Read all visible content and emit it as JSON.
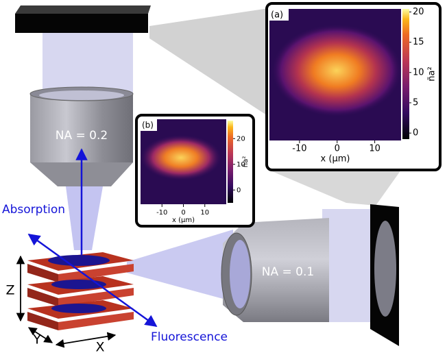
{
  "labels": {
    "objective_top": "NA = 0.2",
    "objective_right": "NA = 0.1",
    "absorption": "Absorption",
    "fluorescence": "Fluorescence",
    "axis_z": "Z",
    "axis_y": "Y",
    "axis_x": "X"
  },
  "insets": [
    {
      "tag": "(a)",
      "xlabel": "x (µm)",
      "xlim": [
        -18,
        17
      ],
      "xticks": [
        -10,
        0,
        10
      ],
      "colorbar_label": "ña²",
      "clim": [
        -1,
        20.5
      ],
      "cticks": [
        0,
        5,
        10,
        15,
        20
      ]
    },
    {
      "tag": "(b)",
      "xlabel": "x (µm)",
      "xlim": [
        -20,
        20
      ],
      "xticks": [
        -10,
        0,
        10
      ],
      "colorbar_label": "ña²",
      "clim": [
        -5,
        27
      ],
      "cticks": [
        0,
        10,
        20
      ]
    }
  ]
}
